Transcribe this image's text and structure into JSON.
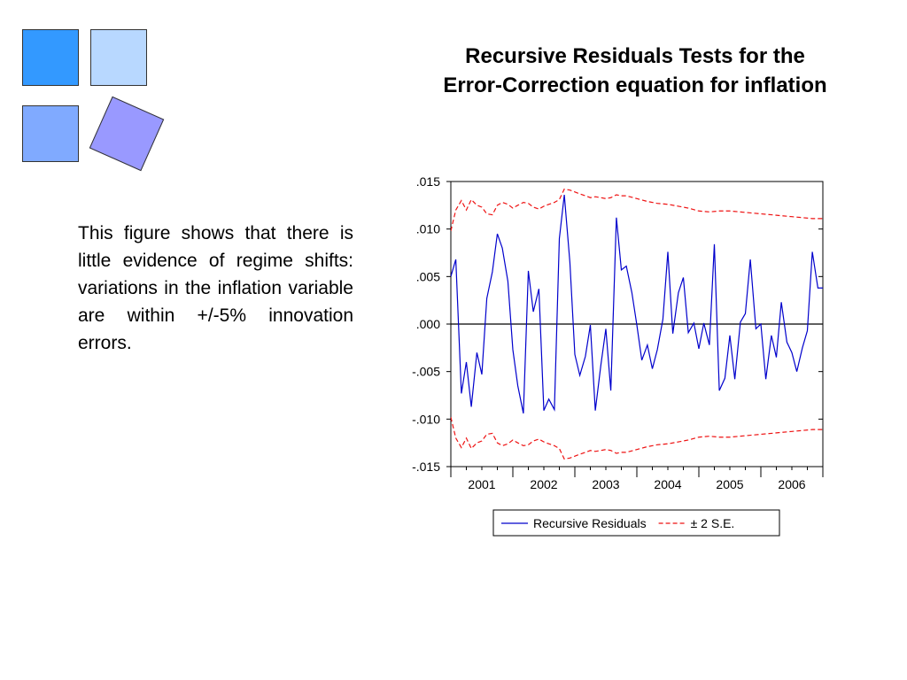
{
  "slide": {
    "title_line1": "Recursive Residuals Tests for the",
    "title_line2": "Error-Correction equation for inflation",
    "body_text": "This figure shows that there is little evidence of regime shifts: variations in the inflation variable are within +/-5% innovation errors.",
    "decor_colors": [
      "#3399ff",
      "#b8d8ff",
      "#80aaff",
      "#9999ff"
    ]
  },
  "chart_data": {
    "type": "line",
    "title": "",
    "xlabel": "",
    "ylabel": "",
    "ylim": [
      -0.015,
      0.015
    ],
    "xlim": [
      2000.5,
      2006.5
    ],
    "ytick_values": [
      0.015,
      0.01,
      0.005,
      0.0,
      -0.005,
      -0.01,
      -0.015
    ],
    "ytick_labels": [
      ".015",
      ".010",
      ".005",
      ".000",
      "-.005",
      "-.010",
      "-.015"
    ],
    "xtick_values": [
      2001,
      2002,
      2003,
      2004,
      2005,
      2006
    ],
    "xtick_labels": [
      "2001",
      "2002",
      "2003",
      "2004",
      "2005",
      "2006"
    ],
    "zero_line": true,
    "grid": false,
    "legend_position": "bottom-center",
    "series": [
      {
        "name": "Recursive Residuals",
        "color": "#0000cc",
        "style": "solid",
        "x": [
          2000.5,
          2000.58,
          2000.67,
          2000.75,
          2000.83,
          2000.92,
          2001.0,
          2001.08,
          2001.17,
          2001.25,
          2001.33,
          2001.42,
          2001.5,
          2001.58,
          2001.67,
          2001.75,
          2001.83,
          2001.92,
          2002.0,
          2002.08,
          2002.17,
          2002.25,
          2002.33,
          2002.42,
          2002.5,
          2002.58,
          2002.67,
          2002.75,
          2002.83,
          2002.92,
          2003.0,
          2003.08,
          2003.17,
          2003.25,
          2003.33,
          2003.42,
          2003.5,
          2003.58,
          2003.67,
          2003.75,
          2003.83,
          2003.92,
          2004.0,
          2004.08,
          2004.17,
          2004.25,
          2004.33,
          2004.42,
          2004.5,
          2004.58,
          2004.67,
          2004.75,
          2004.83,
          2004.92,
          2005.0,
          2005.08,
          2005.17,
          2005.25,
          2005.33,
          2005.42,
          2005.5,
          2005.58,
          2005.67,
          2005.75,
          2005.83,
          2005.92,
          2006.0,
          2006.08,
          2006.17,
          2006.25,
          2006.33,
          2006.42,
          2006.5
        ],
        "values": [
          0.005,
          0.0068,
          -0.0073,
          -0.004,
          -0.0087,
          -0.003,
          -0.0053,
          0.0027,
          0.0055,
          0.0095,
          0.008,
          0.0045,
          -0.0027,
          -0.0065,
          -0.0094,
          0.0056,
          0.0013,
          0.0037,
          -0.0091,
          -0.0079,
          -0.009,
          0.009,
          0.0136,
          0.0065,
          -0.0032,
          -0.0054,
          -0.0034,
          -0.0001,
          -0.0091,
          -0.0043,
          -0.0005,
          -0.007,
          0.0112,
          0.0057,
          0.0061,
          0.0033,
          -0.0001,
          -0.0038,
          -0.0022,
          -0.0047,
          -0.0027,
          0.0005,
          0.0076,
          -0.001,
          0.0033,
          0.0049,
          -0.0009,
          0.0001,
          -0.0026,
          0.0001,
          -0.0022,
          0.0084,
          -0.007,
          -0.0057,
          -0.0012,
          -0.0058,
          0.0002,
          0.0011,
          0.0068,
          -0.0005,
          0.0,
          -0.0058,
          -0.0012,
          -0.0035,
          0.0023,
          -0.0019,
          -0.003,
          -0.005,
          -0.0025,
          -0.0007,
          0.0076,
          0.0038,
          0.0038
        ]
      },
      {
        "name": "± 2 S.E.",
        "color": "#ee1111",
        "style": "dashed",
        "x": [
          2000.5,
          2000.58,
          2000.67,
          2000.75,
          2000.83,
          2000.92,
          2001.0,
          2001.08,
          2001.17,
          2001.25,
          2001.33,
          2001.42,
          2001.5,
          2001.58,
          2001.67,
          2001.75,
          2001.83,
          2001.92,
          2002.0,
          2002.08,
          2002.17,
          2002.25,
          2002.33,
          2002.42,
          2002.5,
          2002.58,
          2002.67,
          2002.75,
          2002.83,
          2002.92,
          2003.0,
          2003.08,
          2003.17,
          2003.25,
          2003.33,
          2003.5,
          2003.67,
          2003.83,
          2004.0,
          2004.17,
          2004.33,
          2004.5,
          2004.67,
          2004.83,
          2005.0,
          2005.17,
          2005.33,
          2005.5,
          2005.67,
          2005.83,
          2006.0,
          2006.17,
          2006.33,
          2006.42,
          2006.5
        ],
        "values": [
          0.0098,
          0.012,
          0.013,
          0.012,
          0.0131,
          0.0125,
          0.0123,
          0.0116,
          0.0115,
          0.0125,
          0.0128,
          0.0126,
          0.0122,
          0.0125,
          0.0128,
          0.0127,
          0.0123,
          0.0121,
          0.0124,
          0.0126,
          0.0128,
          0.0131,
          0.0142,
          0.0141,
          0.0139,
          0.0137,
          0.0135,
          0.0133,
          0.0134,
          0.0133,
          0.0132,
          0.0133,
          0.0136,
          0.0135,
          0.0135,
          0.0132,
          0.0129,
          0.0127,
          0.0126,
          0.0124,
          0.0122,
          0.0119,
          0.0118,
          0.0119,
          0.0119,
          0.0118,
          0.0117,
          0.0116,
          0.0115,
          0.0114,
          0.0113,
          0.0112,
          0.0111,
          0.0111,
          0.0111
        ],
        "symmetric": true
      }
    ]
  }
}
